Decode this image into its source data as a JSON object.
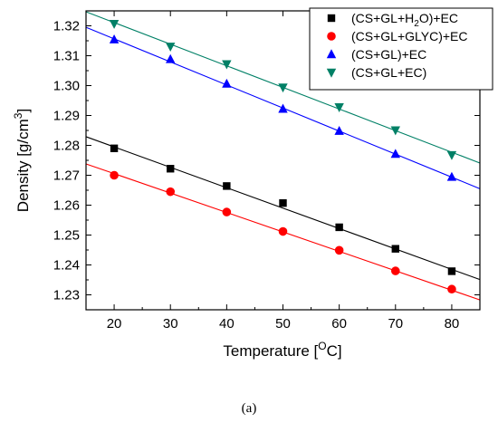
{
  "chart_data": {
    "type": "scatter",
    "caption": "(a)",
    "xlabel": "Temperature [",
    "xlabel_sup": "O",
    "xlabel_tail": "C]",
    "ylabel": "Density [g/cm",
    "ylabel_sup": "3",
    "ylabel_tail": "]",
    "xlim": [
      15,
      85
    ],
    "ylim": [
      1.225,
      1.325
    ],
    "x_ticks": [
      20,
      30,
      40,
      50,
      60,
      70,
      80
    ],
    "y_ticks": [
      1.23,
      1.24,
      1.25,
      1.26,
      1.27,
      1.28,
      1.29,
      1.3,
      1.31,
      1.32
    ],
    "y_tick_labels": [
      "1.23",
      "1.24",
      "1.25",
      "1.26",
      "1.27",
      "1.28",
      "1.29",
      "1.30",
      "1.31",
      "1.32"
    ],
    "legend_position": "top-right",
    "series": [
      {
        "name_parts": [
          "(CS+GL+H",
          "2",
          "O)+EC"
        ],
        "marker": "square",
        "color": "#000000",
        "x": [
          20,
          30,
          40,
          50,
          60,
          70,
          80
        ],
        "y": [
          1.279,
          1.2722,
          1.2664,
          1.2607,
          1.2526,
          1.2454,
          1.2379
        ],
        "fit": [
          [
            15,
            1.2829
          ],
          [
            85,
            1.2351
          ]
        ]
      },
      {
        "name_parts": [
          "(CS+GL+GLYC)+EC"
        ],
        "marker": "circle",
        "color": "#ff0000",
        "x": [
          20,
          30,
          40,
          50,
          60,
          70,
          80
        ],
        "y": [
          1.27,
          1.2645,
          1.2577,
          1.2512,
          1.2449,
          1.238,
          1.2319
        ],
        "fit": [
          [
            15,
            1.2738
          ],
          [
            85,
            1.2283
          ]
        ]
      },
      {
        "name_parts": [
          "(CS+GL)+EC"
        ],
        "marker": "triangle-up",
        "color": "#0000ff",
        "x": [
          20,
          30,
          40,
          50,
          60,
          70,
          80
        ],
        "y": [
          1.3154,
          1.3088,
          1.3006,
          1.2922,
          1.2848,
          1.2771,
          1.2694
        ],
        "fit": [
          [
            15,
            1.3195
          ],
          [
            85,
            1.2655
          ]
        ]
      },
      {
        "name_parts": [
          "(CS+GL+EC)"
        ],
        "marker": "triangle-down",
        "color": "#008066",
        "x": [
          20,
          30,
          40,
          50,
          60,
          70,
          80
        ],
        "y": [
          1.3207,
          1.3131,
          1.3072,
          1.2994,
          1.2928,
          1.2851,
          1.2768
        ],
        "fit": [
          [
            15,
            1.3247
          ],
          [
            85,
            1.2741
          ]
        ]
      }
    ]
  }
}
